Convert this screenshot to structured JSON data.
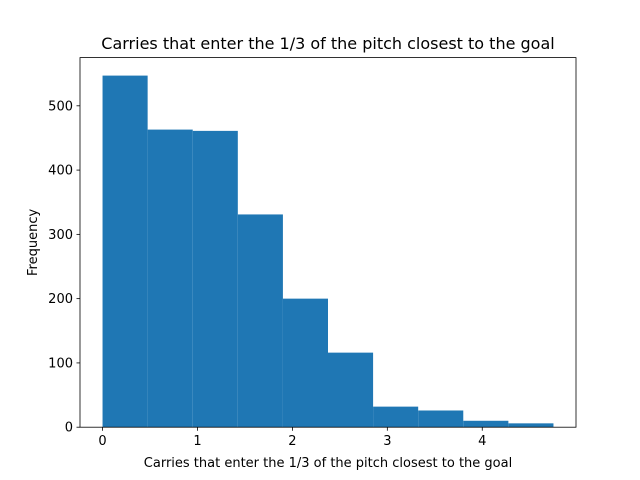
{
  "chart_data": {
    "type": "bar",
    "title": "Carries that enter the 1/3 of the pitch closest to the goal",
    "xlabel": "Carries that enter the 1/3 of the pitch closest to the goal",
    "ylabel": "Frequency",
    "bar_color": "#1f77b4",
    "bin_edges": [
      0,
      0.475,
      0.95,
      1.425,
      1.9,
      2.375,
      2.85,
      3.325,
      3.8,
      4.275,
      4.75
    ],
    "values": [
      547,
      463,
      461,
      331,
      200,
      116,
      32,
      26,
      10,
      6
    ],
    "xlim": [
      -0.2375,
      4.9875
    ],
    "ylim": [
      0,
      575
    ],
    "xticks": [
      0,
      1,
      2,
      3,
      4
    ],
    "xtick_labels": [
      "0",
      "1",
      "2",
      "3",
      "4"
    ],
    "yticks": [
      0,
      100,
      200,
      300,
      400,
      500
    ],
    "ytick_labels": [
      "0",
      "100",
      "200",
      "300",
      "400",
      "500"
    ],
    "grid": false,
    "legend": "none"
  }
}
